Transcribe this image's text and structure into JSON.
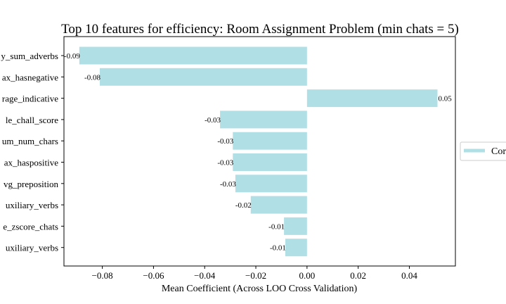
{
  "chart_data": {
    "type": "bar",
    "orientation": "horizontal",
    "title": "Top 10 features for efficiency: Room Assignment Problem (min chats = 5)",
    "xlabel": "Mean Coefficient (Across LOO Cross Validation)",
    "ylabel": "",
    "xlim": [
      -0.095,
      0.058
    ],
    "xticks": [
      -0.08,
      -0.06,
      -0.04,
      -0.02,
      0.0,
      0.02,
      0.04
    ],
    "xtick_labels": [
      "−0.08",
      "−0.06",
      "−0.04",
      "−0.02",
      "0.00",
      "0.02",
      "0.04"
    ],
    "categories": [
      "y_sum_adverbs",
      "ax_hasnegative",
      "rage_indicative",
      "le_chall_score",
      "um_num_chars",
      "ax_haspositive",
      "vg_preposition",
      "uxiliary_verbs",
      "e_zscore_chats",
      "uxiliary_verbs"
    ],
    "values": [
      -0.089,
      -0.081,
      0.051,
      -0.034,
      -0.029,
      -0.029,
      -0.028,
      -0.022,
      -0.009,
      -0.0085
    ],
    "value_labels": [
      "-0.09",
      "-0.08",
      "0.05",
      "-0.03",
      "-0.03",
      "-0.03",
      "-0.03",
      "-0.02",
      "-0.01",
      "-0.01"
    ],
    "legend": {
      "entries": [
        "Cor"
      ],
      "placement": "right"
    },
    "bar_color": "#b0e0e6",
    "grid": false
  }
}
